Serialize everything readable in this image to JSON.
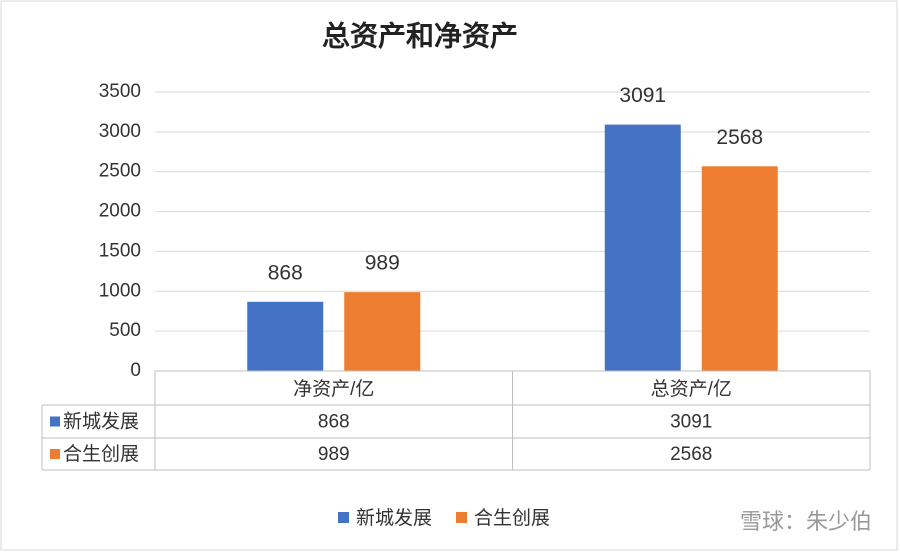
{
  "chart_data": {
    "type": "bar",
    "title": "总资产和净资产",
    "categories": [
      "净资产/亿",
      "总资产/亿"
    ],
    "series": [
      {
        "name": "新城发展",
        "color": "#4472c4",
        "values": [
          868,
          3091
        ]
      },
      {
        "name": "合生创展",
        "color": "#ed7d31",
        "values": [
          989,
          2568
        ]
      }
    ],
    "ylim": [
      0,
      3500
    ],
    "yticks": [
      0,
      500,
      1000,
      1500,
      2000,
      2500,
      3000,
      3500
    ],
    "grid": true,
    "legend": "bottom",
    "data_table": true,
    "watermark": "雪球：朱少伯"
  }
}
